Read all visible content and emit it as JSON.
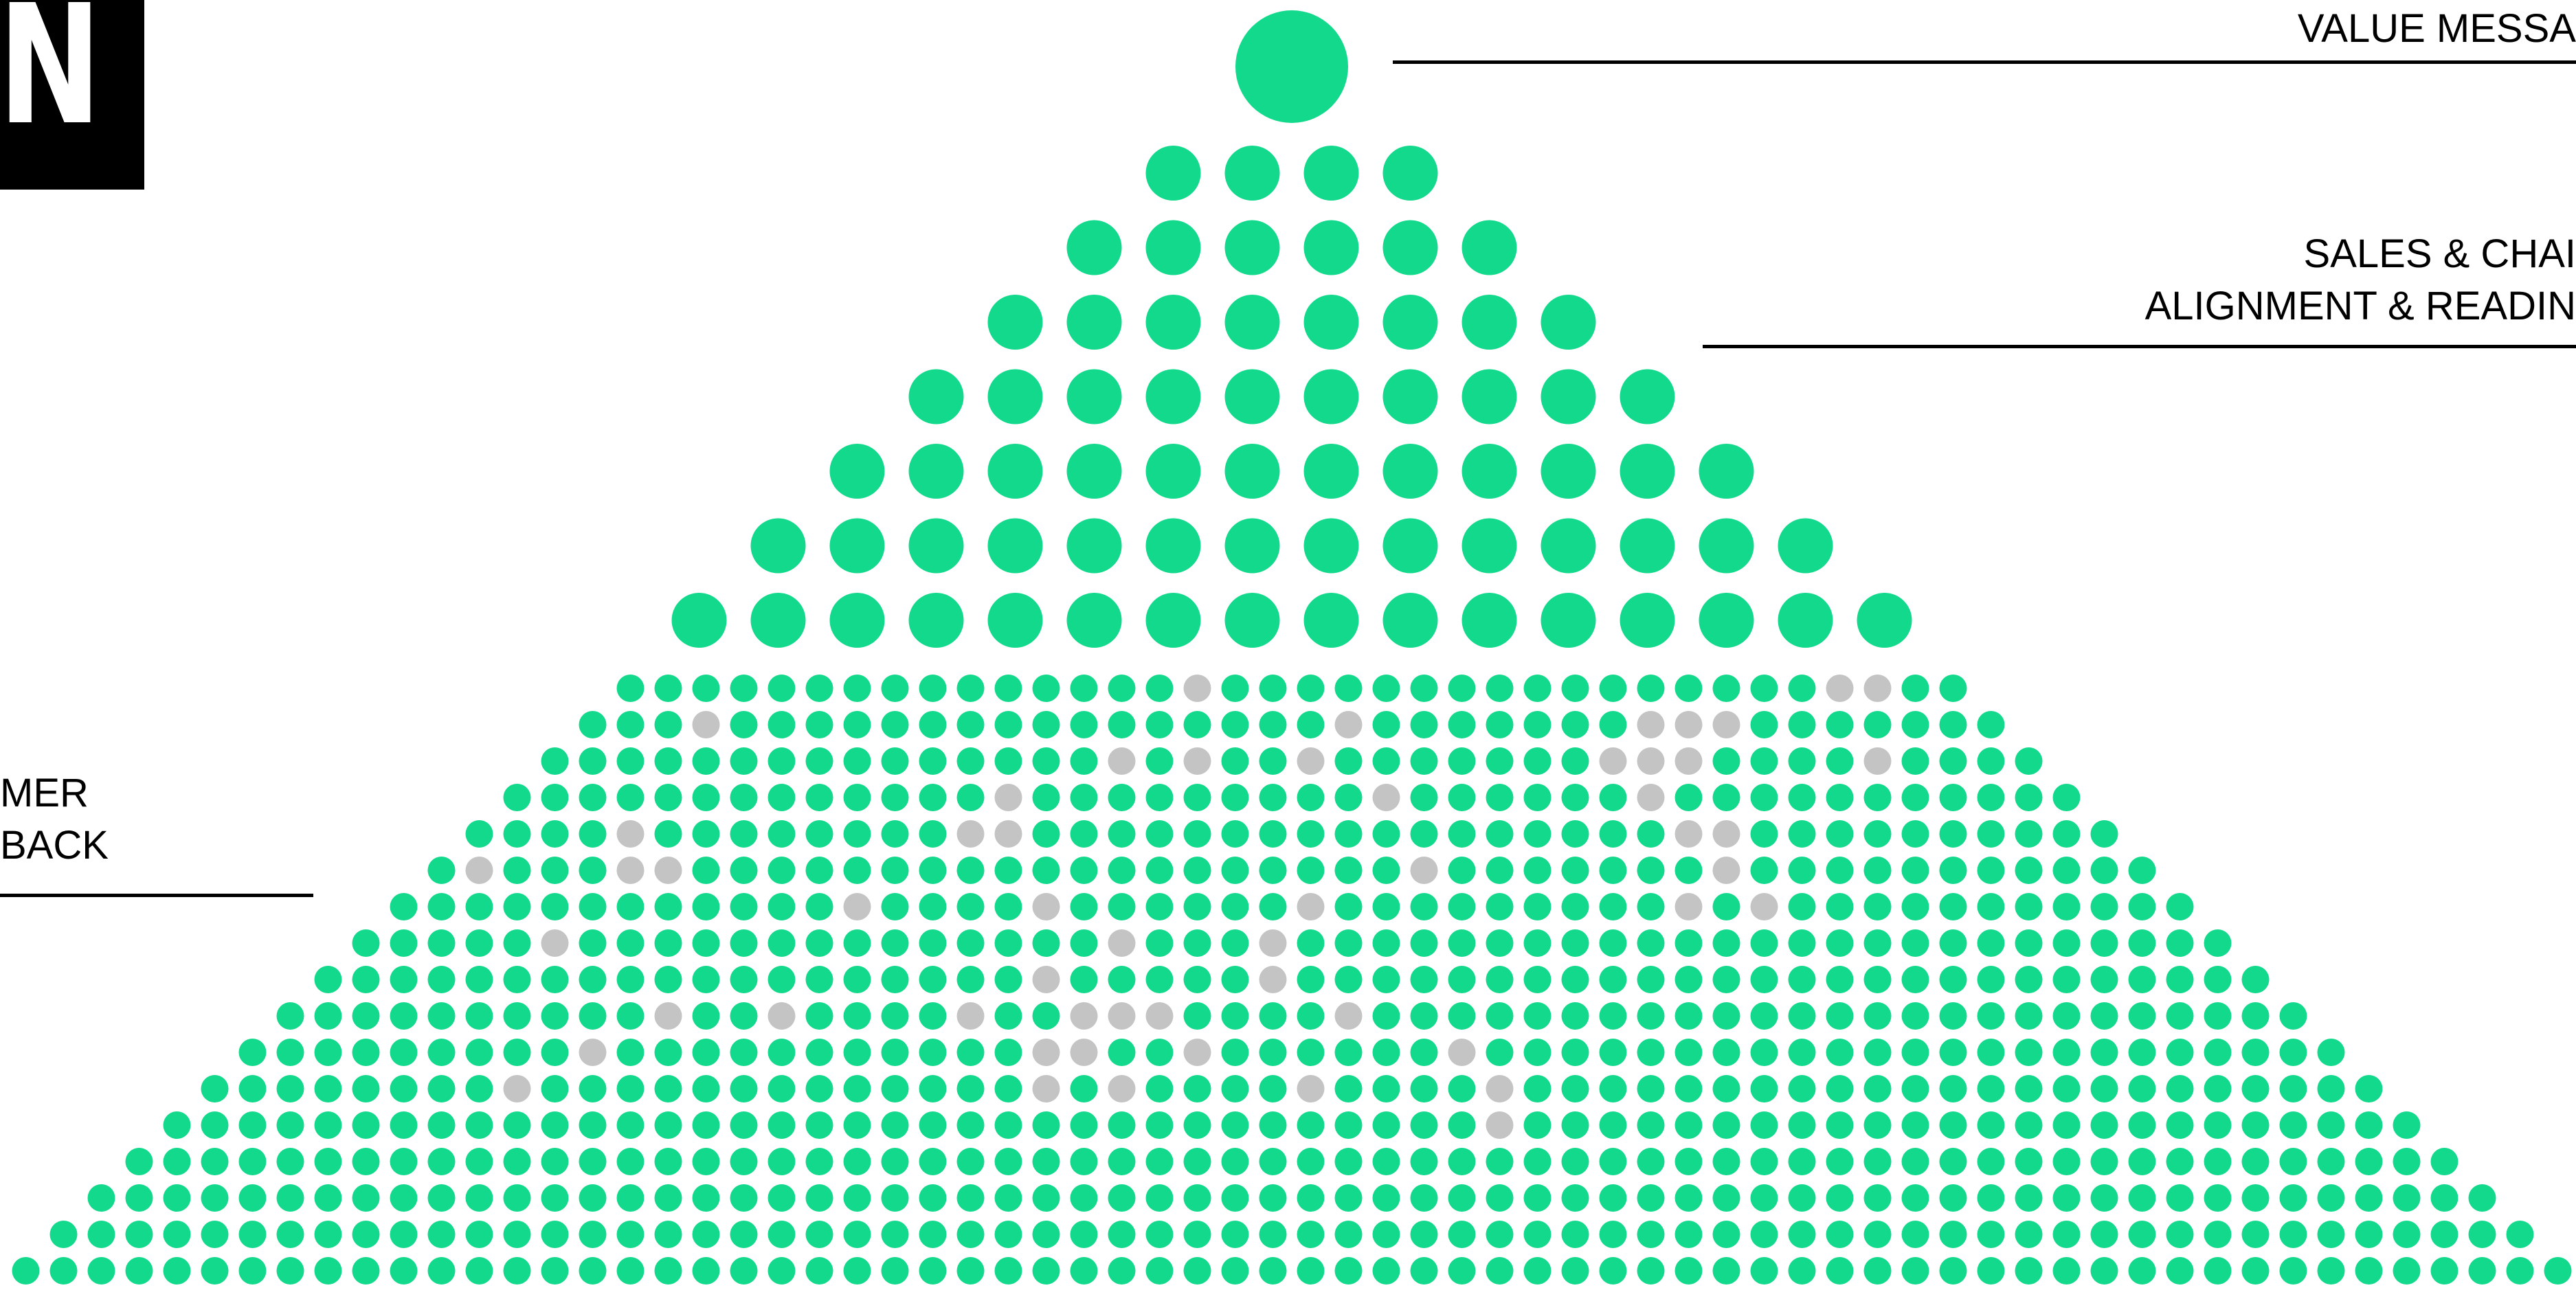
{
  "logo": {
    "glyph": "N"
  },
  "labels": {
    "value_messaging": "VALUE MESSA",
    "sales_line1": "SALES & CHAI",
    "sales_line2": "ALIGNMENT & READIN",
    "customer_line1": "MER",
    "customer_line2": "BACK"
  },
  "colors": {
    "primary": "#12d98b",
    "muted": "#c4c4c4",
    "text": "#000000",
    "background": "#ffffff"
  },
  "pyramid": {
    "top_tier": {
      "dots": 1
    },
    "upper_tier": {
      "rows": [
        4,
        6,
        8,
        10,
        12,
        14,
        16
      ]
    },
    "base_tier": {
      "rows": [
        36,
        38,
        40,
        42,
        44,
        46,
        48,
        50,
        52,
        54,
        56,
        58,
        60,
        62,
        64,
        66,
        68
      ],
      "gray_dots": [
        [
          0,
          15
        ],
        [
          0,
          32
        ],
        [
          0,
          33
        ],
        [
          1,
          3
        ],
        [
          1,
          20
        ],
        [
          1,
          28
        ],
        [
          1,
          29
        ],
        [
          1,
          30
        ],
        [
          2,
          15
        ],
        [
          2,
          17
        ],
        [
          2,
          20
        ],
        [
          2,
          28
        ],
        [
          2,
          29
        ],
        [
          2,
          30
        ],
        [
          2,
          35
        ],
        [
          3,
          13
        ],
        [
          3,
          23
        ],
        [
          3,
          30
        ],
        [
          4,
          4
        ],
        [
          4,
          13
        ],
        [
          4,
          14
        ],
        [
          4,
          32
        ],
        [
          4,
          33
        ],
        [
          5,
          1
        ],
        [
          5,
          5
        ],
        [
          5,
          6
        ],
        [
          5,
          26
        ],
        [
          5,
          34
        ],
        [
          6,
          12
        ],
        [
          6,
          17
        ],
        [
          6,
          24
        ],
        [
          6,
          34
        ],
        [
          6,
          36
        ],
        [
          7,
          5
        ],
        [
          7,
          20
        ],
        [
          7,
          24
        ],
        [
          8,
          19
        ],
        [
          8,
          25
        ],
        [
          9,
          10
        ],
        [
          9,
          13
        ],
        [
          9,
          18
        ],
        [
          9,
          21
        ],
        [
          9,
          22
        ],
        [
          9,
          23
        ],
        [
          9,
          28
        ],
        [
          10,
          9
        ],
        [
          10,
          21
        ],
        [
          10,
          22
        ],
        [
          10,
          25
        ],
        [
          10,
          32
        ],
        [
          11,
          8
        ],
        [
          11,
          22
        ],
        [
          11,
          24
        ],
        [
          11,
          29
        ],
        [
          11,
          34
        ],
        [
          12,
          35
        ]
      ]
    }
  }
}
